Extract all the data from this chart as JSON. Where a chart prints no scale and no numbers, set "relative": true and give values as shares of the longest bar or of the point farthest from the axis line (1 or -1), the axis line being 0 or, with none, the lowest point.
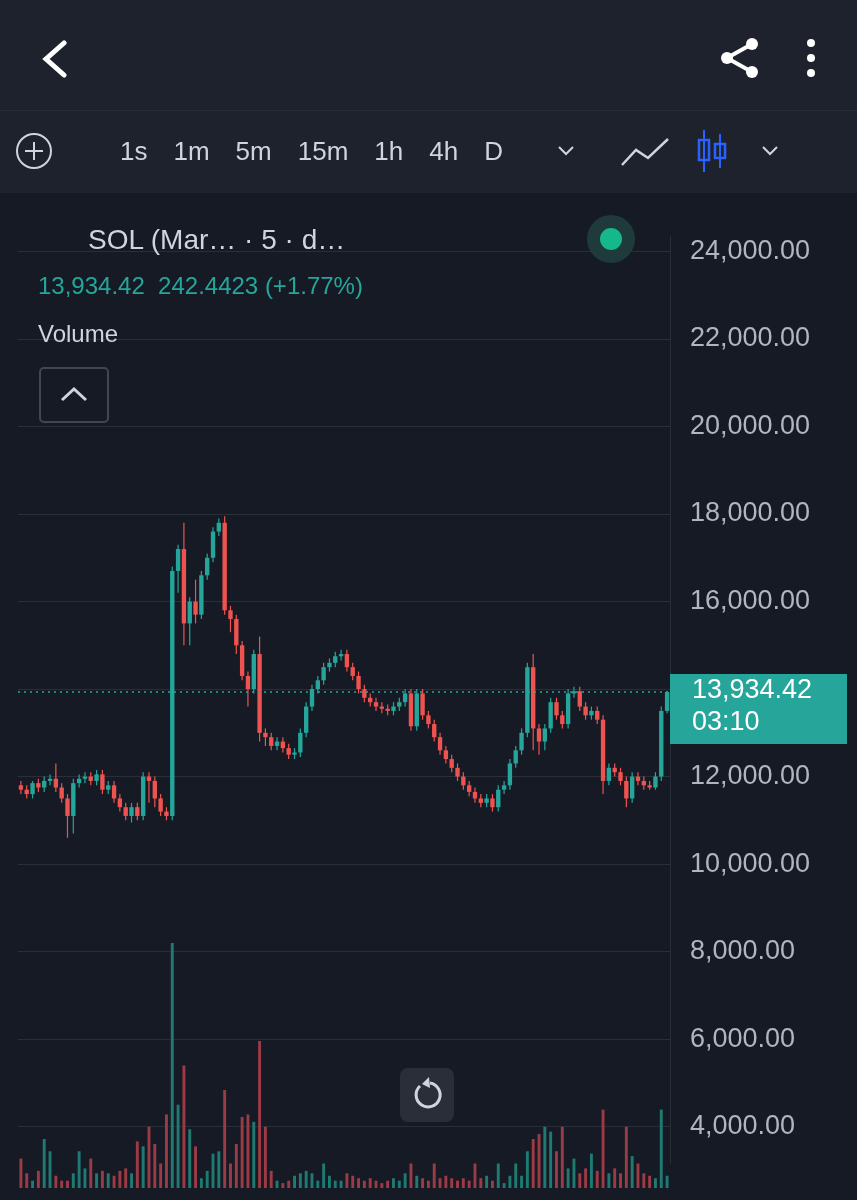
{
  "chart_data": [
    {
      "type": "candlestick",
      "title": "SOL (Mar… · 5 · d…",
      "subtitle": "13,934.42  242.4423 (+1.77%)",
      "annotations": [
        "1s",
        "1m",
        "5m",
        "15m",
        "1h",
        "4h",
        "D"
      ],
      "categories": [
        null,
        null,
        null,
        null,
        null,
        null,
        null,
        null,
        null,
        null,
        null,
        null,
        null,
        null,
        null,
        null,
        null,
        null,
        null,
        null,
        null,
        null,
        null,
        null,
        null,
        null,
        null,
        null,
        null,
        null,
        null,
        null,
        null,
        null,
        null,
        null,
        null,
        null,
        null,
        null,
        null,
        null,
        null,
        null,
        null,
        null,
        null,
        null,
        null,
        null,
        null,
        null,
        null,
        null,
        null,
        null,
        null,
        null,
        null,
        null,
        null,
        null,
        null,
        null,
        null,
        null,
        null,
        null,
        null,
        null,
        null,
        null,
        null,
        null,
        null,
        null,
        null,
        null,
        null,
        null,
        null,
        null,
        null,
        null,
        null,
        null,
        null,
        null,
        null,
        null,
        null,
        null,
        null,
        null,
        null,
        null,
        null,
        null,
        null,
        null,
        null,
        null,
        null,
        null,
        null,
        null,
        null,
        null,
        null,
        null,
        null,
        null
      ],
      "ohlc": [
        [
          11800,
          11900,
          11600,
          11700
        ],
        [
          11700,
          11800,
          11500,
          11600
        ],
        [
          11600,
          11900,
          11500,
          11850
        ],
        [
          11850,
          11950,
          11650,
          11750
        ],
        [
          11750,
          12000,
          11650,
          11900
        ],
        [
          11900,
          12050,
          11800,
          11950
        ],
        [
          11950,
          12300,
          11650,
          11750
        ],
        [
          11750,
          11850,
          11400,
          11500
        ],
        [
          11500,
          11600,
          10600,
          11100
        ],
        [
          11100,
          11950,
          10700,
          11850
        ],
        [
          11850,
          12050,
          11750,
          11950
        ],
        [
          11950,
          12100,
          11850,
          12000
        ],
        [
          12000,
          12100,
          11800,
          11900
        ],
        [
          11900,
          12150,
          11800,
          12050
        ],
        [
          12050,
          12150,
          11600,
          11700
        ],
        [
          11700,
          11900,
          11600,
          11800
        ],
        [
          11800,
          11900,
          11400,
          11500
        ],
        [
          11500,
          11600,
          11200,
          11300
        ],
        [
          11300,
          11400,
          11000,
          11100
        ],
        [
          11100,
          11400,
          10950,
          11300
        ],
        [
          11300,
          11400,
          11000,
          11100
        ],
        [
          11100,
          12100,
          11000,
          12000
        ],
        [
          12000,
          12100,
          11400,
          11900
        ],
        [
          11900,
          12000,
          11300,
          11500
        ],
        [
          11500,
          11600,
          11100,
          11200
        ],
        [
          11200,
          11300,
          11000,
          11100
        ],
        [
          11100,
          16800,
          11000,
          16700
        ],
        [
          16700,
          17300,
          16200,
          17200
        ],
        [
          17200,
          17800,
          15000,
          15500
        ],
        [
          15500,
          16100,
          15000,
          16000
        ],
        [
          16000,
          16500,
          15500,
          15700
        ],
        [
          15700,
          16700,
          15600,
          16600
        ],
        [
          16600,
          17100,
          16500,
          17000
        ],
        [
          17000,
          17700,
          16900,
          17600
        ],
        [
          17600,
          17900,
          17500,
          17800
        ],
        [
          17800,
          17950,
          15700,
          15800
        ],
        [
          15800,
          15900,
          15300,
          15600
        ],
        [
          15600,
          15700,
          14800,
          15000
        ],
        [
          15000,
          15100,
          14200,
          14300
        ],
        [
          14300,
          14400,
          13600,
          14000
        ],
        [
          14000,
          14900,
          13900,
          14800
        ],
        [
          14800,
          15200,
          12800,
          13000
        ],
        [
          13000,
          13100,
          12700,
          12900
        ],
        [
          12900,
          13000,
          12600,
          12700
        ],
        [
          12700,
          12900,
          12600,
          12800
        ],
        [
          12800,
          12900,
          12550,
          12650
        ],
        [
          12650,
          12750,
          12400,
          12500
        ],
        [
          12500,
          12650,
          12400,
          12550
        ],
        [
          12550,
          13100,
          12450,
          13000
        ],
        [
          13000,
          13700,
          12900,
          13600
        ],
        [
          13600,
          14100,
          13500,
          14000
        ],
        [
          14000,
          14300,
          13900,
          14200
        ],
        [
          14200,
          14600,
          14100,
          14500
        ],
        [
          14500,
          14700,
          14400,
          14600
        ],
        [
          14600,
          14850,
          14500,
          14750
        ],
        [
          14750,
          14900,
          14650,
          14800
        ],
        [
          14800,
          14900,
          14400,
          14500
        ],
        [
          14500,
          14600,
          14200,
          14300
        ],
        [
          14300,
          14400,
          13900,
          14000
        ],
        [
          14000,
          14100,
          13700,
          13800
        ],
        [
          13800,
          13900,
          13600,
          13700
        ],
        [
          13700,
          13800,
          13500,
          13600
        ],
        [
          13600,
          13700,
          13450,
          13550
        ],
        [
          13550,
          13650,
          13400,
          13500
        ],
        [
          13500,
          13700,
          13400,
          13600
        ],
        [
          13600,
          13800,
          13500,
          13700
        ],
        [
          13700,
          14000,
          13600,
          13900
        ],
        [
          13900,
          14000,
          13050,
          13150
        ],
        [
          13150,
          14000,
          13050,
          13900
        ],
        [
          13900,
          14000,
          13300,
          13400
        ],
        [
          13400,
          13500,
          13100,
          13200
        ],
        [
          13200,
          13300,
          12800,
          12900
        ],
        [
          12900,
          13000,
          12500,
          12600
        ],
        [
          12600,
          12700,
          12300,
          12400
        ],
        [
          12400,
          12500,
          12100,
          12200
        ],
        [
          12200,
          12300,
          11900,
          12000
        ],
        [
          12000,
          12100,
          11700,
          11800
        ],
        [
          11800,
          11900,
          11550,
          11650
        ],
        [
          11650,
          11750,
          11400,
          11500
        ],
        [
          11500,
          11600,
          11300,
          11400
        ],
        [
          11400,
          11600,
          11300,
          11500
        ],
        [
          11500,
          11600,
          11200,
          11300
        ],
        [
          11300,
          11800,
          11200,
          11700
        ],
        [
          11700,
          11900,
          11600,
          11800
        ],
        [
          11800,
          12400,
          11700,
          12300
        ],
        [
          12300,
          12700,
          12200,
          12600
        ],
        [
          12600,
          13100,
          12500,
          13000
        ],
        [
          13000,
          14600,
          12900,
          14500
        ],
        [
          14500,
          14800,
          12600,
          13100
        ],
        [
          13100,
          13200,
          12500,
          12800
        ],
        [
          12800,
          13200,
          12600,
          13100
        ],
        [
          13100,
          13800,
          13000,
          13700
        ],
        [
          13700,
          13800,
          13300,
          13400
        ],
        [
          13400,
          13500,
          13100,
          13200
        ],
        [
          13200,
          14000,
          13100,
          13900
        ],
        [
          13900,
          14050,
          13800,
          13950
        ],
        [
          13950,
          14050,
          13500,
          13600
        ],
        [
          13600,
          13700,
          13300,
          13400
        ],
        [
          13400,
          13600,
          13300,
          13500
        ],
        [
          13500,
          13600,
          13200,
          13300
        ],
        [
          13300,
          13400,
          11600,
          11900
        ],
        [
          11900,
          12300,
          11800,
          12200
        ],
        [
          12200,
          12300,
          12000,
          12100
        ],
        [
          12100,
          12200,
          11800,
          11900
        ],
        [
          11900,
          12000,
          11300,
          11500
        ],
        [
          11500,
          12100,
          11400,
          12000
        ],
        [
          12000,
          12100,
          11800,
          11900
        ],
        [
          11900,
          12000,
          11700,
          11800
        ],
        [
          11800,
          11900,
          11700,
          11750
        ],
        [
          11750,
          12100,
          11700,
          12000
        ],
        [
          12000,
          13600,
          11900,
          13500
        ],
        [
          13500,
          13950,
          13450,
          13934.42
        ]
      ],
      "colors": [
        "#ef5350",
        "#ef5350",
        "#26a69a",
        "#ef5350",
        "#26a69a",
        "#26a69a",
        "#ef5350",
        "#ef5350",
        "#ef5350",
        "#26a69a",
        "#26a69a",
        "#26a69a",
        "#ef5350",
        "#26a69a",
        "#ef5350",
        "#26a69a",
        "#ef5350",
        "#ef5350",
        "#ef5350",
        "#26a69a",
        "#ef5350",
        "#26a69a",
        "#ef5350",
        "#ef5350",
        "#ef5350",
        "#ef5350",
        "#26a69a",
        "#26a69a",
        "#ef5350",
        "#26a69a",
        "#ef5350",
        "#26a69a",
        "#26a69a",
        "#26a69a",
        "#26a69a",
        "#ef5350",
        "#ef5350",
        "#ef5350",
        "#ef5350",
        "#ef5350",
        "#26a69a",
        "#ef5350",
        "#ef5350",
        "#ef5350",
        "#26a69a",
        "#ef5350",
        "#ef5350",
        "#26a69a",
        "#26a69a",
        "#26a69a",
        "#26a69a",
        "#26a69a",
        "#26a69a",
        "#26a69a",
        "#26a69a",
        "#26a69a",
        "#ef5350",
        "#ef5350",
        "#ef5350",
        "#ef5350",
        "#ef5350",
        "#ef5350",
        "#ef5350",
        "#ef5350",
        "#26a69a",
        "#26a69a",
        "#26a69a",
        "#ef5350",
        "#26a69a",
        "#ef5350",
        "#ef5350",
        "#ef5350",
        "#ef5350",
        "#ef5350",
        "#ef5350",
        "#ef5350",
        "#ef5350",
        "#ef5350",
        "#ef5350",
        "#ef5350",
        "#26a69a",
        "#ef5350",
        "#26a69a",
        "#26a69a",
        "#26a69a",
        "#26a69a",
        "#26a69a",
        "#26a69a",
        "#ef5350",
        "#ef5350",
        "#26a69a",
        "#26a69a",
        "#ef5350",
        "#ef5350",
        "#26a69a",
        "#26a69a",
        "#ef5350",
        "#ef5350",
        "#26a69a",
        "#ef5350",
        "#ef5350",
        "#26a69a",
        "#ef5350",
        "#ef5350",
        "#ef5350",
        "#26a69a",
        "#ef5350",
        "#ef5350",
        "#ef5350",
        "#26a69a",
        "#26a69a",
        "#26a69a"
      ],
      "ylim": [
        3150,
        24350
      ],
      "yticks": [
        {
          "value": 4000,
          "label": "4,000.00"
        },
        {
          "value": 6000,
          "label": "6,000.00"
        },
        {
          "value": 8000,
          "label": "8,000.00"
        },
        {
          "value": 10000,
          "label": "10,000.00"
        },
        {
          "value": 12000,
          "label": "12,000.00"
        },
        {
          "value": 14000,
          "label": null
        },
        {
          "value": 16000,
          "label": "16,000.00"
        },
        {
          "value": 18000,
          "label": "18,000.00"
        },
        {
          "value": 20000,
          "label": "20,000.00"
        },
        {
          "value": 22000,
          "label": "22,000.00"
        },
        {
          "value": 24000,
          "label": "24,000.00"
        }
      ],
      "ref_lines": [
        {
          "axis": "y",
          "value": 13934.42,
          "label": "13,934.42 03:10",
          "color": "#26a69a",
          "line_style": "dotted"
        }
      ],
      "grid": "y",
      "tick_labels": "y"
    },
    {
      "type": "bar",
      "title": "Volume",
      "relative": true,
      "tick_labels": false,
      "categories": [
        null,
        null,
        null,
        null,
        null,
        null,
        null,
        null,
        null,
        null,
        null,
        null,
        null,
        null,
        null,
        null,
        null,
        null,
        null,
        null,
        null,
        null,
        null,
        null,
        null,
        null,
        null,
        null,
        null,
        null,
        null,
        null,
        null,
        null,
        null,
        null,
        null,
        null,
        null,
        null,
        null,
        null,
        null,
        null,
        null,
        null,
        null,
        null,
        null,
        null,
        null,
        null,
        null,
        null,
        null,
        null,
        null,
        null,
        null,
        null,
        null,
        null,
        null,
        null,
        null,
        null,
        null,
        null,
        null,
        null,
        null,
        null,
        null,
        null,
        null,
        null,
        null,
        null,
        null,
        null,
        null,
        null,
        null,
        null,
        null,
        null,
        null,
        null,
        null,
        null,
        null,
        null,
        null,
        null,
        null,
        null,
        null,
        null,
        null,
        null,
        null,
        null,
        null,
        null,
        null,
        null,
        null,
        null,
        null,
        null,
        null,
        null
      ],
      "values": [
        0.12,
        0.06,
        0.03,
        0.07,
        0.2,
        0.15,
        0.05,
        0.03,
        0.03,
        0.06,
        0.15,
        0.08,
        0.12,
        0.06,
        0.07,
        0.06,
        0.05,
        0.07,
        0.08,
        0.06,
        0.19,
        0.17,
        0.25,
        0.18,
        0.1,
        0.3,
        1,
        0.34,
        0.5,
        0.24,
        0.17,
        0.04,
        0.07,
        0.14,
        0.15,
        0.4,
        0.1,
        0.18,
        0.29,
        0.3,
        0.27,
        0.6,
        0.25,
        0.07,
        0.03,
        0.02,
        0.03,
        0.05,
        0.06,
        0.07,
        0.06,
        0.03,
        0.1,
        0.05,
        0.03,
        0.03,
        0.06,
        0.05,
        0.04,
        0.03,
        0.04,
        0.03,
        0.02,
        0.03,
        0.04,
        0.03,
        0.06,
        0.1,
        0.05,
        0.04,
        0.03,
        0.1,
        0.04,
        0.05,
        0.04,
        0.03,
        0.04,
        0.03,
        0.1,
        0.04,
        0.05,
        0.03,
        0.1,
        0.02,
        0.05,
        0.1,
        0.05,
        0.15,
        0.2,
        0.22,
        0.25,
        0.23,
        0.15,
        0.25,
        0.08,
        0.12,
        0.06,
        0.08,
        0.14,
        0.07,
        0.32,
        0.06,
        0.08,
        0.06,
        0.25,
        0.13,
        0.1,
        0.06,
        0.05,
        0.04,
        0.32,
        0.05
      ],
      "colors": [
        "#9b3b45",
        "#9b3b45",
        "#1f7a72",
        "#9b3b45",
        "#1f7a72",
        "#1f7a72",
        "#9b3b45",
        "#9b3b45",
        "#9b3b45",
        "#1f7a72",
        "#1f7a72",
        "#1f7a72",
        "#9b3b45",
        "#1f7a72",
        "#9b3b45",
        "#1f7a72",
        "#9b3b45",
        "#9b3b45",
        "#9b3b45",
        "#1f7a72",
        "#9b3b45",
        "#1f7a72",
        "#9b3b45",
        "#9b3b45",
        "#9b3b45",
        "#9b3b45",
        "#1f7a72",
        "#1f7a72",
        "#9b3b45",
        "#1f7a72",
        "#9b3b45",
        "#1f7a72",
        "#1f7a72",
        "#1f7a72",
        "#1f7a72",
        "#9b3b45",
        "#9b3b45",
        "#9b3b45",
        "#9b3b45",
        "#9b3b45",
        "#1f7a72",
        "#9b3b45",
        "#9b3b45",
        "#9b3b45",
        "#1f7a72",
        "#9b3b45",
        "#9b3b45",
        "#1f7a72",
        "#1f7a72",
        "#1f7a72",
        "#1f7a72",
        "#1f7a72",
        "#1f7a72",
        "#1f7a72",
        "#1f7a72",
        "#1f7a72",
        "#9b3b45",
        "#9b3b45",
        "#9b3b45",
        "#9b3b45",
        "#9b3b45",
        "#9b3b45",
        "#9b3b45",
        "#9b3b45",
        "#1f7a72",
        "#1f7a72",
        "#1f7a72",
        "#9b3b45",
        "#1f7a72",
        "#9b3b45",
        "#9b3b45",
        "#9b3b45",
        "#9b3b45",
        "#9b3b45",
        "#9b3b45",
        "#9b3b45",
        "#9b3b45",
        "#9b3b45",
        "#9b3b45",
        "#9b3b45",
        "#1f7a72",
        "#9b3b45",
        "#1f7a72",
        "#1f7a72",
        "#1f7a72",
        "#1f7a72",
        "#1f7a72",
        "#1f7a72",
        "#9b3b45",
        "#9b3b45",
        "#1f7a72",
        "#1f7a72",
        "#9b3b45",
        "#9b3b45",
        "#1f7a72",
        "#1f7a72",
        "#9b3b45",
        "#9b3b45",
        "#1f7a72",
        "#9b3b45",
        "#9b3b45",
        "#1f7a72",
        "#9b3b45",
        "#9b3b45",
        "#9b3b45",
        "#1f7a72",
        "#9b3b45",
        "#9b3b45",
        "#9b3b45",
        "#1f7a72",
        "#1f7a72",
        "#1f7a72"
      ]
    }
  ]
}
